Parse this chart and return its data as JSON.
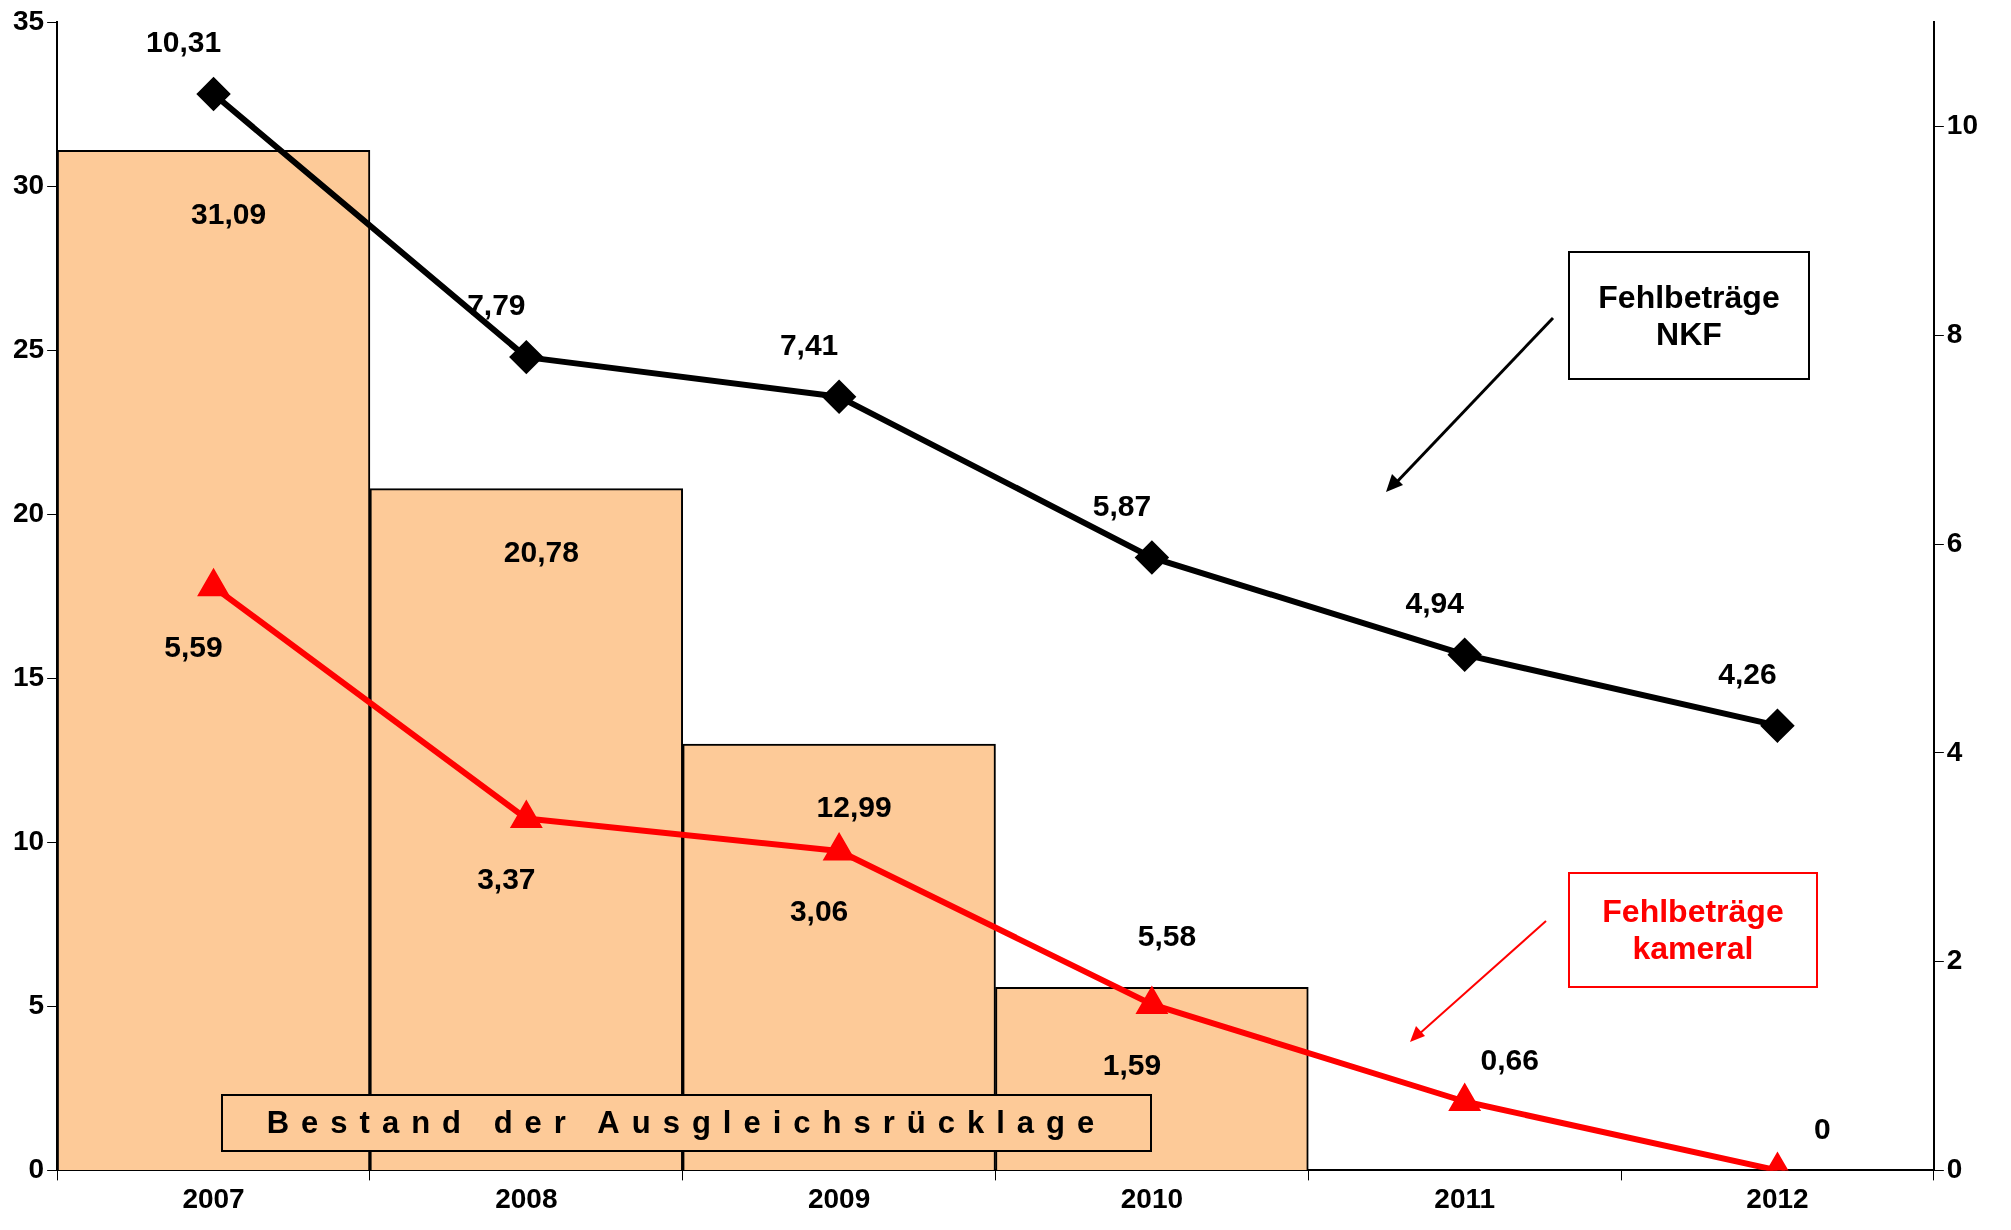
{
  "chart_data": {
    "type": "bar",
    "categories": [
      "2007",
      "2008",
      "2009",
      "2010",
      "2011",
      "2012"
    ],
    "series": [
      {
        "name": "Bestand der Ausgleichsrücklage",
        "color": "#fdca98",
        "values": [
          31.09,
          20.78,
          12.99,
          5.58,
          null,
          null
        ],
        "value_labels": [
          "31,09",
          "20,78",
          "12,99",
          "5,58",
          null,
          null
        ]
      },
      {
        "name": "Fehlbeträge NKF",
        "type": "line",
        "axis": "y2",
        "color": "#000000",
        "marker": "diamond",
        "values": [
          10.31,
          7.79,
          7.41,
          5.87,
          4.94,
          4.26
        ],
        "value_labels": [
          "10,31",
          "7,79",
          "7,41",
          "5,87",
          "4,94",
          "4,26"
        ]
      },
      {
        "name": "Fehlbeträge kameral",
        "type": "line",
        "axis": "y2",
        "color": "#ff0000",
        "marker": "triangle",
        "values": [
          5.59,
          3.37,
          3.06,
          1.59,
          0.66,
          0
        ],
        "value_labels": [
          "5,59",
          "3,37",
          "3,06",
          "1,59",
          "0,66",
          "0"
        ]
      }
    ],
    "ylim": [
      0,
      35
    ],
    "yticks": [
      0,
      5,
      10,
      15,
      20,
      25,
      30,
      35
    ],
    "y2lim": [
      0,
      11
    ],
    "y2ticks": [
      0,
      2,
      4,
      6,
      8,
      10
    ],
    "grid": false,
    "legend": false
  }
}
